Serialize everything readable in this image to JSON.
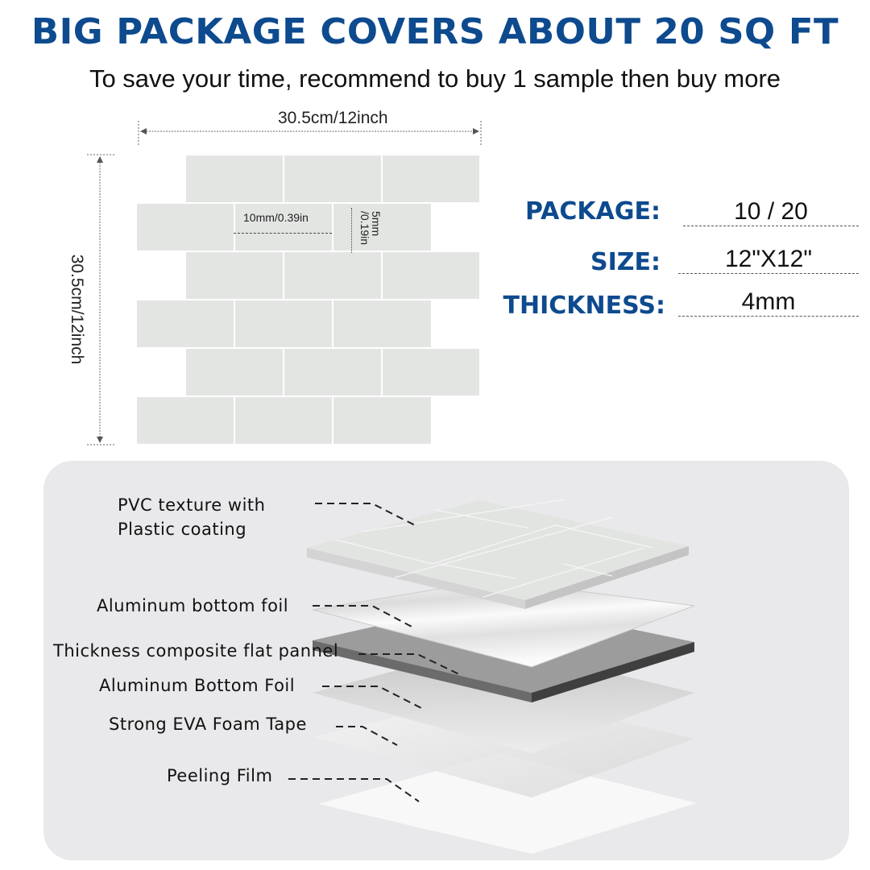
{
  "headline": "BIG PACKAGE COVERS ABOUT 20 SQ FT",
  "subheadline": "To save your time, recommend to buy 1 sample then buy more",
  "dimensions": {
    "width": "30.5cm/12inch",
    "height": "30.5cm/12inch",
    "grout_width": "10mm/0.39in",
    "grout_height": "5mm\n/0.19in"
  },
  "specs": [
    {
      "label": "PACKAGE:",
      "value": "10 / 20"
    },
    {
      "label": "SIZE:",
      "value": "12\"X12\""
    },
    {
      "label": "THICKNESS:",
      "value": "4mm"
    }
  ],
  "layers": [
    "PVC texture with\nPlastic coating",
    "Aluminum bottom foil",
    "Thickness composite flat pannel",
    "Aluminum Bottom Foil",
    "Strong EVA Foam Tape",
    "Peeling Film"
  ],
  "colors": {
    "brand_blue": "#0d4a8e",
    "tile": "#e3e5e3",
    "panel_bg": "#e9e8ea"
  }
}
